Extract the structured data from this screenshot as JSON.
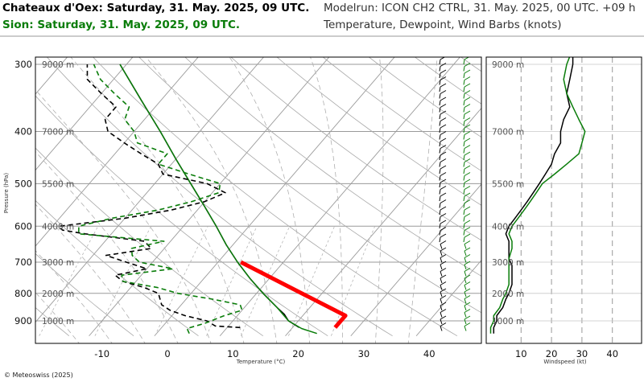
{
  "header": {
    "station_primary": "Chateaux d'Oex: Saturday, 31. May. 2025, 09 UTC.",
    "station_secondary": "Sion: Saturday, 31. May. 2025, 09 UTC.",
    "model_run": "Modelrun: ICON CH2 CTRL, 31. May. 2025, 00 UTC. +09 h",
    "subtitle": "Temperature, Dewpoint, Wind Barbs (knots)"
  },
  "footer": {
    "credit": "© Meteoswiss (2025)"
  },
  "colors": {
    "primary": "#000000",
    "secondary": "#0a7d0a",
    "highlight": "#ff0000",
    "grid": "#9a9a9a"
  },
  "chart_data": [
    {
      "type": "line",
      "subtype": "skew-t log-p sounding",
      "xlabel": "Temperature (°C)",
      "ylabel": "Pressure (hPa)",
      "xlim": [
        -20,
        47
      ],
      "ylim": [
        950,
        290
      ],
      "x_ticks": [
        "-10",
        "0",
        "10",
        "20",
        "30",
        "40"
      ],
      "y_ticks": [
        "300",
        "400",
        "500",
        "600",
        "700",
        "800",
        "900"
      ],
      "height_labels": [
        "9000 m",
        "7000 m",
        "5500 m",
        "4000 m",
        "3000 m",
        "2000 m",
        "1000 m"
      ],
      "grid": true,
      "series": [
        {
          "role": "temperature",
          "station": "primary",
          "points": [
            [
              926,
              21
            ],
            [
              900,
              18.5
            ],
            [
              875,
              17
            ],
            [
              850,
              15
            ],
            [
              800,
              11
            ],
            [
              750,
              7
            ],
            [
              700,
              3
            ],
            [
              650,
              -1
            ],
            [
              600,
              -5
            ],
            [
              550,
              -9.5
            ],
            [
              500,
              -14.5
            ],
            [
              450,
              -20
            ],
            [
              400,
              -26
            ],
            [
              350,
              -33
            ],
            [
              300,
              -41
            ]
          ]
        },
        {
          "role": "temperature",
          "station": "secondary",
          "points": [
            [
              950,
              24.5
            ],
            [
              930,
              21.5
            ],
            [
              900,
              18.5
            ],
            [
              850,
              15
            ],
            [
              800,
              11
            ],
            [
              750,
              7
            ],
            [
              700,
              3
            ],
            [
              650,
              -1
            ],
            [
              600,
              -5
            ],
            [
              550,
              -9.5
            ],
            [
              500,
              -14.5
            ],
            [
              450,
              -20
            ],
            [
              400,
              -26
            ],
            [
              350,
              -33
            ],
            [
              300,
              -41
            ]
          ]
        },
        {
          "role": "dewpoint",
          "station": "primary",
          "points": [
            [
              926,
              12
            ],
            [
              920,
              8
            ],
            [
              900,
              6
            ],
            [
              880,
              2
            ],
            [
              860,
              -1
            ],
            [
              840,
              -3
            ],
            [
              800,
              -5
            ],
            [
              780,
              -8
            ],
            [
              760,
              -12
            ],
            [
              740,
              -14
            ],
            [
              720,
              -10
            ],
            [
              700,
              -14
            ],
            [
              680,
              -18
            ],
            [
              660,
              -12
            ],
            [
              640,
              -14
            ],
            [
              620,
              -24
            ],
            [
              610,
              -28
            ],
            [
              600,
              -29
            ],
            [
              580,
              -20
            ],
            [
              560,
              -14
            ],
            [
              540,
              -10
            ],
            [
              520,
              -8
            ],
            [
              500,
              -12
            ],
            [
              480,
              -20
            ],
            [
              460,
              -22
            ],
            [
              440,
              -26
            ],
            [
              420,
              -30
            ],
            [
              400,
              -34
            ],
            [
              380,
              -36
            ],
            [
              360,
              -36
            ],
            [
              340,
              -40
            ],
            [
              320,
              -44
            ],
            [
              300,
              -46
            ]
          ]
        },
        {
          "role": "dewpoint",
          "station": "secondary",
          "points": [
            [
              950,
              5
            ],
            [
              930,
              4
            ],
            [
              910,
              6
            ],
            [
              880,
              8
            ],
            [
              860,
              10
            ],
            [
              840,
              9
            ],
            [
              820,
              4
            ],
            [
              800,
              -2
            ],
            [
              780,
              -6
            ],
            [
              760,
              -12
            ],
            [
              740,
              -13
            ],
            [
              720,
              -6
            ],
            [
              700,
              -12
            ],
            [
              680,
              -14
            ],
            [
              660,
              -15
            ],
            [
              640,
              -11
            ],
            [
              620,
              -25
            ],
            [
              600,
              -26
            ],
            [
              580,
              -22
            ],
            [
              560,
              -16
            ],
            [
              540,
              -12
            ],
            [
              520,
              -9
            ],
            [
              500,
              -10
            ],
            [
              480,
              -16
            ],
            [
              460,
              -22
            ],
            [
              440,
              -22
            ],
            [
              420,
              -28
            ],
            [
              400,
              -30
            ],
            [
              380,
              -33
            ],
            [
              360,
              -34
            ],
            [
              340,
              -38
            ],
            [
              320,
              -42
            ],
            [
              300,
              -45
            ]
          ]
        },
        {
          "role": "highlight",
          "color": "#ff0000",
          "points": [
            [
              926,
              26.5
            ],
            [
              900,
              26.5
            ],
            [
              880,
              26.5
            ],
            [
              700,
              3.5
            ]
          ]
        }
      ]
    },
    {
      "type": "line",
      "subtype": "wind speed profile",
      "xlabel": "Windspeed (kt)",
      "x_ticks": [
        "10",
        "20",
        "30",
        "40"
      ],
      "xlim": [
        0,
        48
      ],
      "height_labels": [
        "9000 m",
        "7000 m",
        "5500 m",
        "4000 m",
        "3000 m",
        "2000 m",
        "1000 m"
      ],
      "series": [
        {
          "station": "primary",
          "points": [
            [
              950,
              1
            ],
            [
              926,
              1
            ],
            [
              900,
              2
            ],
            [
              880,
              2
            ],
            [
              850,
              4
            ],
            [
              820,
              5
            ],
            [
              800,
              6
            ],
            [
              770,
              7
            ],
            [
              740,
              7
            ],
            [
              710,
              7
            ],
            [
              690,
              6
            ],
            [
              660,
              6
            ],
            [
              640,
              6
            ],
            [
              620,
              5
            ],
            [
              600,
              6
            ],
            [
              580,
              8
            ],
            [
              560,
              10
            ],
            [
              540,
              12
            ],
            [
              520,
              14
            ],
            [
              500,
              16
            ],
            [
              480,
              18
            ],
            [
              460,
              20
            ],
            [
              440,
              21
            ],
            [
              420,
              23
            ],
            [
              400,
              23
            ],
            [
              380,
              24
            ],
            [
              360,
              26
            ],
            [
              340,
              25
            ],
            [
              320,
              26
            ],
            [
              300,
              27
            ],
            [
              290,
              27
            ]
          ]
        },
        {
          "station": "secondary",
          "points": [
            [
              950,
              0
            ],
            [
              926,
              0
            ],
            [
              900,
              1
            ],
            [
              880,
              1
            ],
            [
              850,
              3
            ],
            [
              820,
              4
            ],
            [
              800,
              5
            ],
            [
              770,
              6
            ],
            [
              740,
              6
            ],
            [
              710,
              6
            ],
            [
              690,
              6
            ],
            [
              660,
              7
            ],
            [
              640,
              7
            ],
            [
              620,
              6
            ],
            [
              600,
              7
            ],
            [
              580,
              9
            ],
            [
              560,
              11
            ],
            [
              540,
              13
            ],
            [
              520,
              15
            ],
            [
              500,
              17
            ],
            [
              480,
              21
            ],
            [
              460,
              25
            ],
            [
              440,
              29
            ],
            [
              420,
              30
            ],
            [
              400,
              31
            ],
            [
              380,
              29
            ],
            [
              360,
              27
            ],
            [
              340,
              25
            ],
            [
              320,
              24
            ],
            [
              300,
              25
            ],
            [
              290,
              26
            ]
          ]
        }
      ]
    }
  ]
}
